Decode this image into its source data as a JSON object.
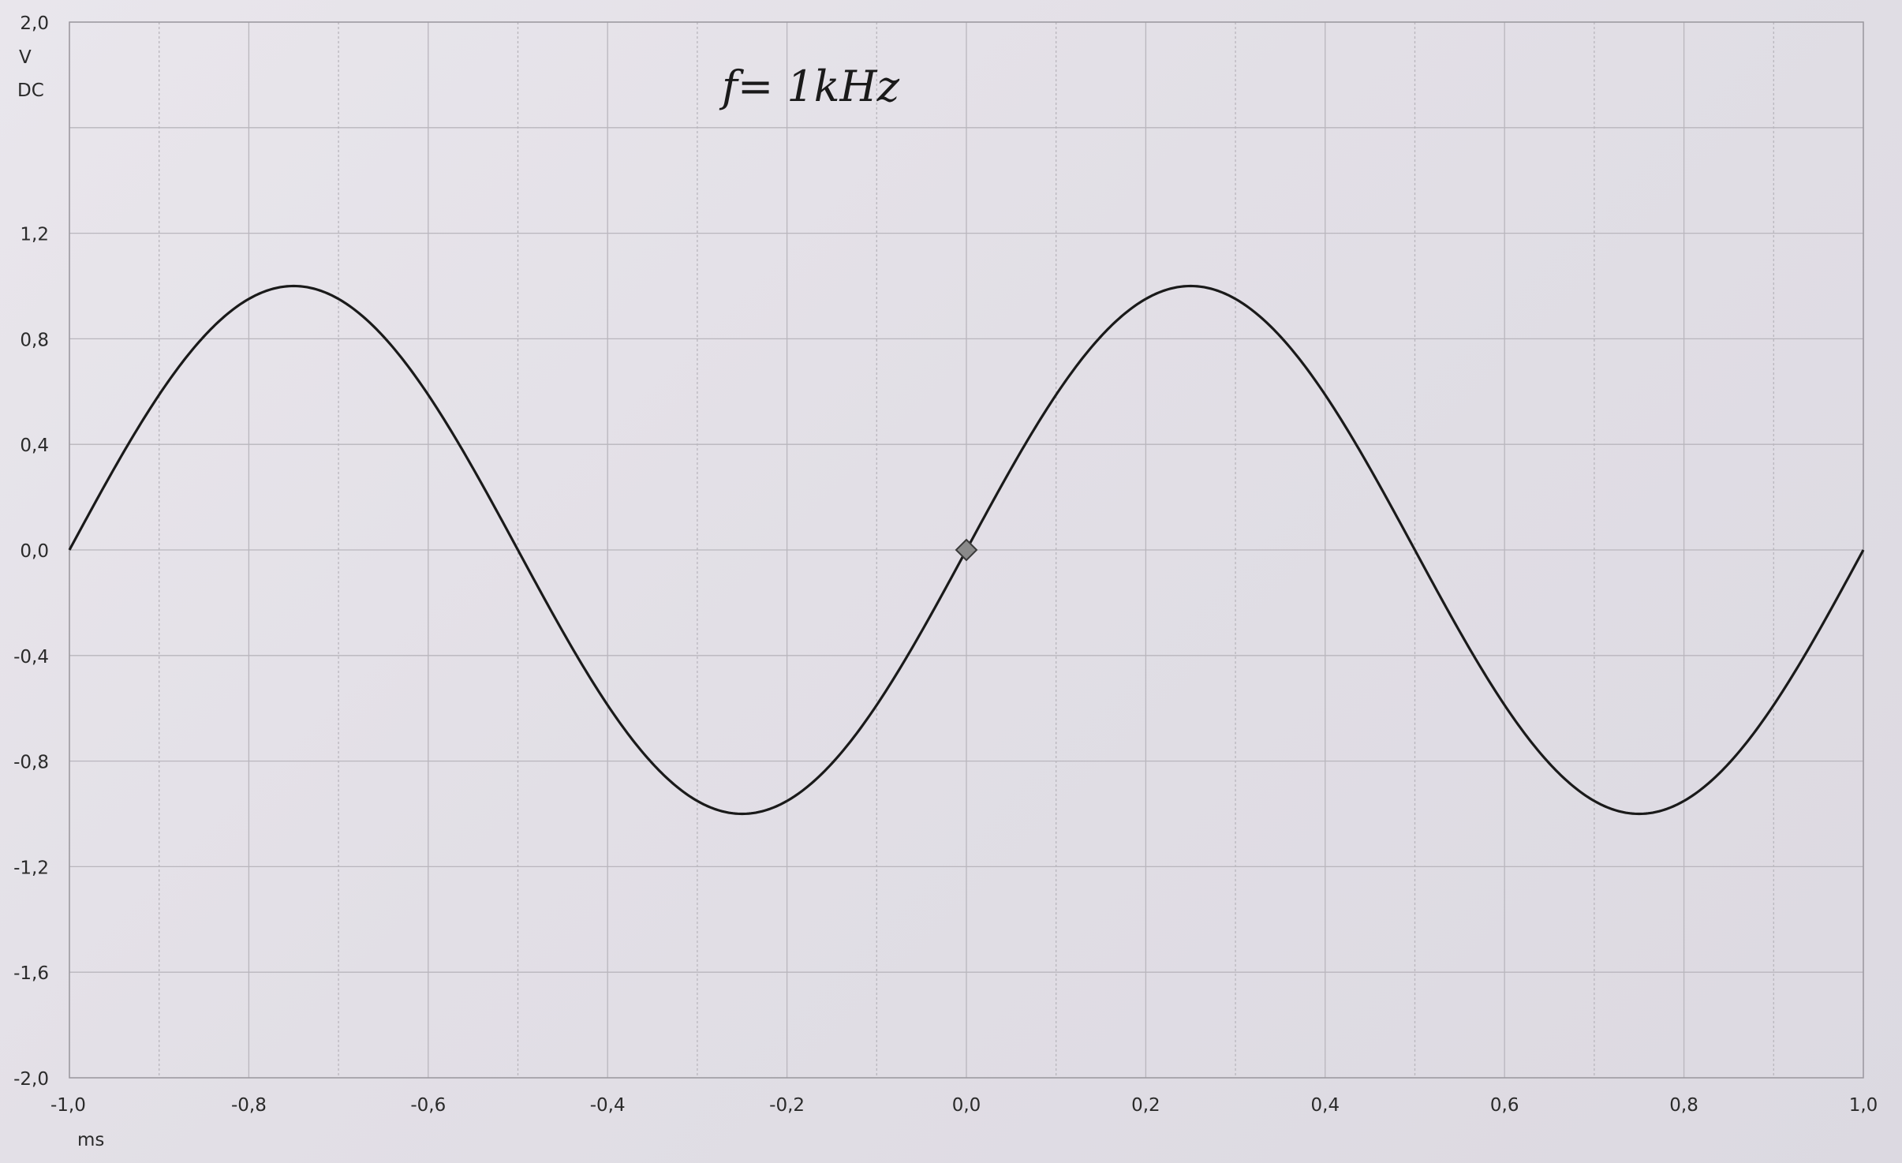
{
  "chart_data": {
    "type": "line",
    "title": "f= 1kHz",
    "xlabel": "ms",
    "ylabel": "V",
    "ylabel_sub": "DC",
    "xlim": [
      -1.0,
      1.0
    ],
    "ylim": [
      -2.0,
      2.0
    ],
    "x_ticks": [
      -1.0,
      -0.8,
      -0.6,
      -0.4,
      -0.2,
      0.0,
      0.2,
      0.4,
      0.6,
      0.8,
      1.0
    ],
    "x_tick_labels": [
      "-1,0",
      "-0,8",
      "-0,6",
      "-0,4",
      "-0,2",
      "0,0",
      "0,2",
      "0,4",
      "0,6",
      "0,8",
      "1,0"
    ],
    "y_tick_labels": [
      {
        "value": 2.0,
        "label": "2,0"
      },
      {
        "value": 1.2,
        "label": "1,2"
      },
      {
        "value": 0.8,
        "label": "0,8"
      },
      {
        "value": 0.4,
        "label": "0,4"
      },
      {
        "value": 0.0,
        "label": "0,0"
      },
      {
        "value": -0.4,
        "label": "-0,4"
      },
      {
        "value": -0.8,
        "label": "-0,8"
      },
      {
        "value": -1.2,
        "label": "-1,2"
      },
      {
        "value": -1.6,
        "label": "-1,6"
      },
      {
        "value": -2.0,
        "label": "-2,0"
      }
    ],
    "grid": true,
    "series": [
      {
        "amplitude": 1.0,
        "frequency_khz": 1.0,
        "x": [
          -1.0,
          -0.875,
          -0.75,
          -0.625,
          -0.5,
          -0.375,
          -0.25,
          -0.125,
          0.0,
          0.125,
          0.25,
          0.375,
          0.5,
          0.625,
          0.75,
          0.875,
          1.0
        ],
        "values": [
          0.0,
          0.71,
          1.0,
          0.71,
          0.0,
          -0.71,
          -1.0,
          -0.71,
          0.0,
          0.71,
          1.0,
          0.71,
          0.0,
          -0.71,
          -1.0,
          -0.71,
          0.0
        ],
        "color": "#1a1a1a"
      }
    ],
    "marker": {
      "shape": "diamond",
      "x": 0.0,
      "y": 0.0,
      "color": "#8a8a8a"
    }
  }
}
